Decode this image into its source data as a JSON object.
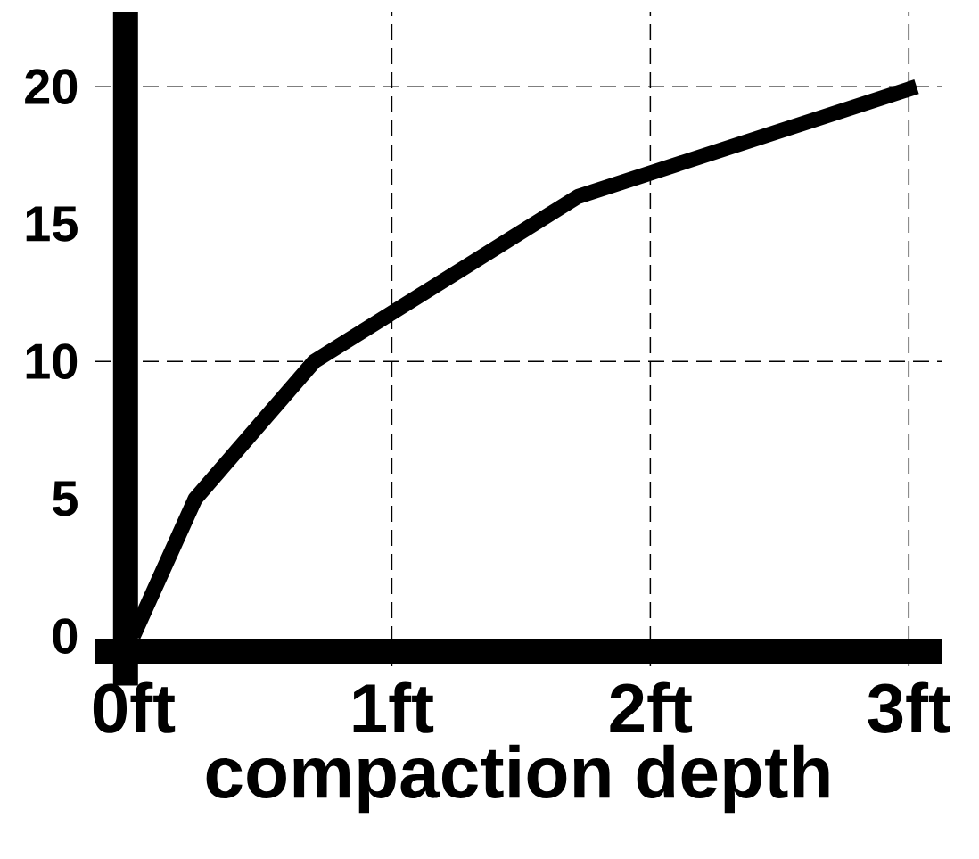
{
  "chart_data": {
    "type": "line",
    "xlabel": "compaction depth",
    "x": [
      0,
      0.24,
      0.7,
      1.72,
      3.03
    ],
    "series": [
      {
        "color": "#000000",
        "values": [
          0,
          5,
          10,
          16,
          20
        ]
      }
    ],
    "xlim": [
      -0.15,
      3.13
    ],
    "ylim": [
      -1.1,
      22.7
    ],
    "xticks": [
      {
        "value": 0,
        "label": "0ft"
      },
      {
        "value": 1,
        "label": "1ft"
      },
      {
        "value": 2,
        "label": "2ft"
      },
      {
        "value": 3,
        "label": "3ft"
      }
    ],
    "yticks": [
      0,
      5,
      10,
      15,
      20
    ],
    "grid": "x",
    "ref_lines": [
      {
        "axis": "y",
        "value": 10,
        "line_style": "dashed"
      },
      {
        "axis": "y",
        "value": 20,
        "line_style": "dashed"
      }
    ],
    "marker": "none",
    "line_style": "solid"
  }
}
